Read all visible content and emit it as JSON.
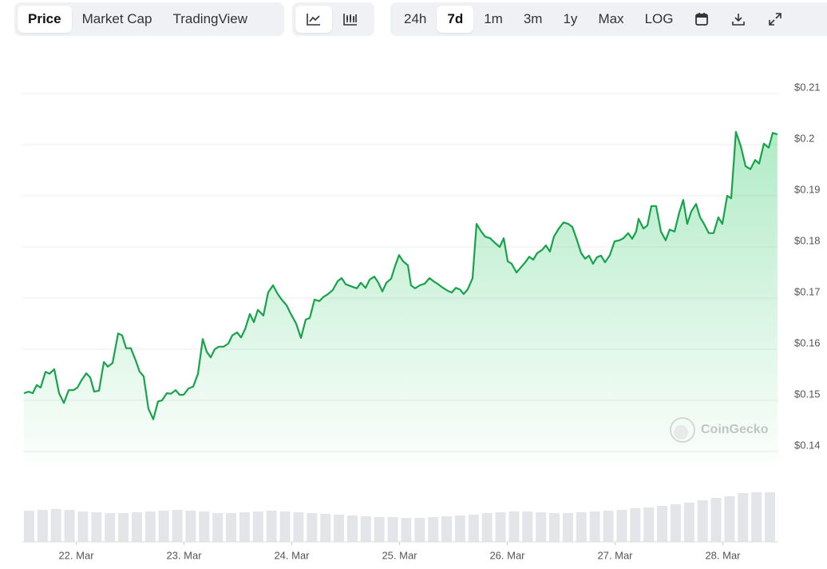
{
  "toolbar": {
    "tabs": [
      "Price",
      "Market Cap",
      "TradingView"
    ],
    "ranges": [
      "24h",
      "7d",
      "1m",
      "3m",
      "1y",
      "Max",
      "LOG"
    ]
  },
  "watermark": "CoinGecko",
  "chart_data": {
    "type": "line",
    "area": true,
    "grid": true,
    "x": [
      21.515,
      21.559,
      21.596,
      21.633,
      21.67,
      21.715,
      21.752,
      21.796,
      21.841,
      21.885,
      21.93,
      21.974,
      22.011,
      22.048,
      22.093,
      22.13,
      22.167,
      22.211,
      22.256,
      22.293,
      22.337,
      22.389,
      22.426,
      22.463,
      22.507,
      22.552,
      22.589,
      22.626,
      22.67,
      22.715,
      22.759,
      22.796,
      22.841,
      22.878,
      22.922,
      22.959,
      22.996,
      23.041,
      23.085,
      23.13,
      23.174,
      23.211,
      23.248,
      23.285,
      23.322,
      23.367,
      23.411,
      23.448,
      23.493,
      23.53,
      23.567,
      23.611,
      23.648,
      23.685,
      23.737,
      23.781,
      23.826,
      23.87,
      23.907,
      23.952,
      23.989,
      24.041,
      24.085,
      24.13,
      24.167,
      24.211,
      24.256,
      24.293,
      24.337,
      24.381,
      24.426,
      24.463,
      24.5,
      24.552,
      24.604,
      24.641,
      24.685,
      24.722,
      24.767,
      24.804,
      24.841,
      24.878,
      24.922,
      24.959,
      24.996,
      25.033,
      25.078,
      25.107,
      25.144,
      25.189,
      25.233,
      25.278,
      25.315,
      25.359,
      25.404,
      25.448,
      25.485,
      25.522,
      25.559,
      25.596,
      25.633,
      25.678,
      25.715,
      25.759,
      25.796,
      25.841,
      25.885,
      25.93,
      25.967,
      26.004,
      26.041,
      26.085,
      26.122,
      26.167,
      26.204,
      26.241,
      26.278,
      26.322,
      26.359,
      26.396,
      26.433,
      26.478,
      26.522,
      26.567,
      26.604,
      26.641,
      26.685,
      26.722,
      26.759,
      26.796,
      26.833,
      26.87,
      26.907,
      26.952,
      26.996,
      27.041,
      27.078,
      27.122,
      27.159,
      27.196,
      27.219,
      27.263,
      27.3,
      27.337,
      27.381,
      27.426,
      27.47,
      27.507,
      27.552,
      27.596,
      27.633,
      27.67,
      27.707,
      27.752,
      27.789,
      27.826,
      27.87,
      27.915,
      27.959,
      27.996,
      28.041,
      28.078,
      28.122,
      28.167,
      28.211,
      28.256,
      28.3,
      28.337,
      28.381,
      28.426,
      28.463,
      28.507
    ],
    "series": [
      {
        "color": "#16a34a",
        "values": [
          0.1514,
          0.1517,
          0.1514,
          0.153,
          0.1525,
          0.1556,
          0.1552,
          0.1561,
          0.1514,
          0.1495,
          0.152,
          0.152,
          0.1525,
          0.1539,
          0.1553,
          0.1545,
          0.1517,
          0.1519,
          0.1575,
          0.1566,
          0.1573,
          0.1631,
          0.1627,
          0.1602,
          0.1602,
          0.1578,
          0.1556,
          0.1547,
          0.1484,
          0.1463,
          0.1498,
          0.15,
          0.1514,
          0.1513,
          0.152,
          0.1511,
          0.1511,
          0.1523,
          0.1527,
          0.1552,
          0.162,
          0.1595,
          0.1584,
          0.16,
          0.1605,
          0.1605,
          0.1611,
          0.1627,
          0.1633,
          0.1623,
          0.1639,
          0.1669,
          0.1653,
          0.1677,
          0.1666,
          0.1711,
          0.1725,
          0.1708,
          0.1697,
          0.1686,
          0.167,
          0.165,
          0.1622,
          0.1658,
          0.1661,
          0.1697,
          0.1694,
          0.1702,
          0.1708,
          0.1716,
          0.1733,
          0.1739,
          0.1727,
          0.1723,
          0.1719,
          0.173,
          0.172,
          0.1736,
          0.1742,
          0.173,
          0.1713,
          0.173,
          0.1738,
          0.1763,
          0.1784,
          0.1772,
          0.1764,
          0.1725,
          0.1719,
          0.1725,
          0.1728,
          0.1739,
          0.1733,
          0.1727,
          0.172,
          0.1714,
          0.1711,
          0.172,
          0.1717,
          0.1708,
          0.1717,
          0.1739,
          0.1845,
          0.183,
          0.182,
          0.1817,
          0.1808,
          0.18,
          0.1817,
          0.1772,
          0.1767,
          0.175,
          0.1759,
          0.177,
          0.1781,
          0.1775,
          0.1788,
          0.1794,
          0.1803,
          0.1791,
          0.182,
          0.1836,
          0.1848,
          0.1845,
          0.1839,
          0.1817,
          0.1788,
          0.1777,
          0.1783,
          0.1767,
          0.178,
          0.1783,
          0.177,
          0.1784,
          0.1811,
          0.1813,
          0.1817,
          0.1827,
          0.1816,
          0.183,
          0.1855,
          0.1836,
          0.1842,
          0.188,
          0.188,
          0.183,
          0.1813,
          0.1834,
          0.183,
          0.1867,
          0.1892,
          0.1845,
          0.1869,
          0.1884,
          0.1858,
          0.1845,
          0.1827,
          0.1827,
          0.1858,
          0.1845,
          0.19,
          0.1895,
          0.2025,
          0.1997,
          0.1958,
          0.1952,
          0.197,
          0.1963,
          0.2002,
          0.1994,
          0.2023,
          0.202
        ]
      }
    ],
    "xlim": [
      21.5,
      28.515
    ],
    "xticks": [
      {
        "value": 22,
        "label": "22. Mar"
      },
      {
        "value": 23,
        "label": "23. Mar"
      },
      {
        "value": 24,
        "label": "24. Mar"
      },
      {
        "value": 25,
        "label": "25. Mar"
      },
      {
        "value": 26,
        "label": "26. Mar"
      },
      {
        "value": 27,
        "label": "27. Mar"
      },
      {
        "value": 28,
        "label": "28. Mar"
      }
    ],
    "ylim": [
      0.138,
      0.2125
    ],
    "yticks": [
      {
        "value": 0.14,
        "label": "$0.14"
      },
      {
        "value": 0.15,
        "label": "$0.15"
      },
      {
        "value": 0.16,
        "label": "$0.16"
      },
      {
        "value": 0.17,
        "label": "$0.17"
      },
      {
        "value": 0.18,
        "label": "$0.18"
      },
      {
        "value": 0.19,
        "label": "$0.19"
      },
      {
        "value": 0.2,
        "label": "$0.2"
      },
      {
        "value": 0.21,
        "label": "$0.21"
      }
    ],
    "volume": {
      "color": "#e3e5e8",
      "ylim": [
        0,
        100
      ],
      "x": [
        21.5625,
        21.6875,
        21.8125,
        21.9375,
        22.0625,
        22.1875,
        22.3125,
        22.4375,
        22.5625,
        22.6875,
        22.8125,
        22.9375,
        23.0625,
        23.1875,
        23.3125,
        23.4375,
        23.5625,
        23.6875,
        23.8125,
        23.9375,
        24.0625,
        24.1875,
        24.3125,
        24.4375,
        24.5625,
        24.6875,
        24.8125,
        24.9375,
        25.0625,
        25.1875,
        25.3125,
        25.4375,
        25.5625,
        25.6875,
        25.8125,
        25.9375,
        26.0625,
        26.1875,
        26.3125,
        26.4375,
        26.5625,
        26.6875,
        26.8125,
        26.9375,
        27.0625,
        27.1875,
        27.3125,
        27.4375,
        27.5625,
        27.6875,
        27.8125,
        27.9375,
        28.0625,
        28.1875,
        28.3125,
        28.4375
      ],
      "values": [
        39,
        40,
        41,
        40,
        38,
        37,
        36,
        36,
        37,
        38,
        39,
        40,
        39,
        38,
        36,
        36,
        37,
        38,
        39,
        38,
        37,
        36,
        35,
        34,
        33,
        32,
        31,
        31,
        30,
        30,
        31,
        32,
        33,
        34,
        36,
        37,
        38,
        38,
        37,
        36,
        36,
        37,
        38,
        39,
        40,
        42,
        43,
        45,
        47,
        49,
        52,
        55,
        57,
        61,
        62,
        62
      ]
    }
  }
}
